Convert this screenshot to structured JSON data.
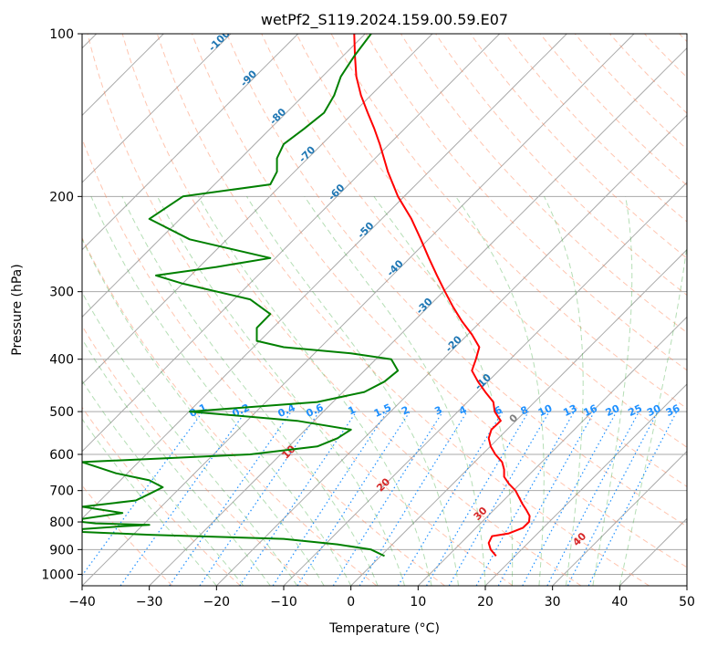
{
  "chart_data": {
    "type": "line",
    "title": "wetPf2_S119.2024.159.00.59.E07",
    "xlabel": "Temperature (°C)",
    "ylabel": "Pressure (hPa)",
    "xlim": [
      -40,
      50
    ],
    "ylim": [
      1050,
      100
    ],
    "y_scale": "log",
    "x_ticks": [
      -40,
      -30,
      -20,
      -10,
      0,
      10,
      20,
      30,
      40,
      50
    ],
    "y_ticks": [
      100,
      200,
      300,
      400,
      500,
      600,
      700,
      800,
      900,
      1000
    ],
    "grid": true,
    "colors": {
      "temperature": "#ff0000",
      "dewpoint": "#008000",
      "isotherm": "#a9a9a9",
      "dry_adiabat": "#ff7f50",
      "moist_adiabat": "#2ca02c",
      "mixing_ratio": "#1e90ff",
      "isotherm_label": "#1f77b4",
      "adiabat_label": "#d62728",
      "zero_label": "#808080"
    },
    "series": [
      {
        "pressure": [
          925,
          900,
          875,
          850,
          840,
          820,
          800,
          780,
          760,
          740,
          700,
          680,
          660,
          640,
          620,
          600,
          580,
          560,
          540,
          520,
          500,
          480,
          460,
          440,
          420,
          400,
          380,
          360,
          340,
          320,
          300,
          280,
          260,
          240,
          220,
          200,
          180,
          160,
          150,
          140,
          130,
          120,
          110,
          100
        ],
        "temperature": [
          21.6,
          20.8,
          20.5,
          21.0,
          23.5,
          25.6,
          26.5,
          26.6,
          26.1,
          25.5,
          24.5,
          23.5,
          22.8,
          22.8,
          22.5,
          21.5,
          20.8,
          20.5,
          20.9,
          22.3,
          21.4,
          21.2,
          20.0,
          18.9,
          18.0,
          18.6,
          19.1,
          18.0,
          16.5,
          15.2,
          14.0,
          12.8,
          11.6,
          10.4,
          9.0,
          7.0,
          5.5,
          4.3,
          3.5,
          2.5,
          1.5,
          0.8,
          0.6,
          0.5
        ]
      },
      {
        "pressure": [
          925,
          900,
          880,
          860,
          845,
          835,
          825,
          815,
          810,
          805,
          800,
          790,
          770,
          750,
          730,
          710,
          690,
          670,
          650,
          620,
          600,
          580,
          560,
          540,
          520,
          500,
          480,
          460,
          440,
          420,
          400,
          390,
          380,
          370,
          350,
          330,
          310,
          290,
          280,
          270,
          260,
          240,
          220,
          200,
          190,
          180,
          170,
          160,
          150,
          140,
          130,
          120,
          110,
          100
        ],
        "dewpoint": [
          5.0,
          3.0,
          -2.0,
          -10.0,
          -30.0,
          -40.0,
          -40.0,
          -34.0,
          -30.0,
          -38.0,
          -40.0,
          -40.0,
          -34.0,
          -40.0,
          -32.0,
          -30.0,
          -28.0,
          -30.0,
          -35.0,
          -40.0,
          -15.0,
          -5.0,
          -2.0,
          0.0,
          -8.0,
          -24.0,
          -5.0,
          2.0,
          5.0,
          7.0,
          6.0,
          0.0,
          -10.0,
          -14.0,
          -14.0,
          -12.0,
          -15.0,
          -25.0,
          -29.0,
          -20.0,
          -12.0,
          -24.0,
          -30.0,
          -25.0,
          -12.0,
          -11.0,
          -11.0,
          -10.0,
          -7.0,
          -4.0,
          -2.5,
          -1.5,
          0.5,
          3.0
        ]
      }
    ],
    "isotherm_labels": [
      -100,
      -90,
      -80,
      -70,
      -60,
      -50,
      -40,
      -30,
      -20,
      -10,
      0
    ],
    "dry_adiabat_labels": [
      10,
      20,
      30,
      40
    ],
    "mixing_ratio_labels": [
      "0.1",
      "0.2",
      "0.4",
      "0.6",
      "1",
      "1.5",
      "2",
      "3",
      "4",
      "6",
      "8",
      "10",
      "13",
      "16",
      "20",
      "25",
      "30",
      "36"
    ],
    "mixing_ratio_values": [
      0.1,
      0.2,
      0.4,
      0.6,
      1,
      1.5,
      2,
      3,
      4,
      6,
      8,
      10,
      13,
      16,
      20,
      25,
      30,
      36
    ]
  }
}
